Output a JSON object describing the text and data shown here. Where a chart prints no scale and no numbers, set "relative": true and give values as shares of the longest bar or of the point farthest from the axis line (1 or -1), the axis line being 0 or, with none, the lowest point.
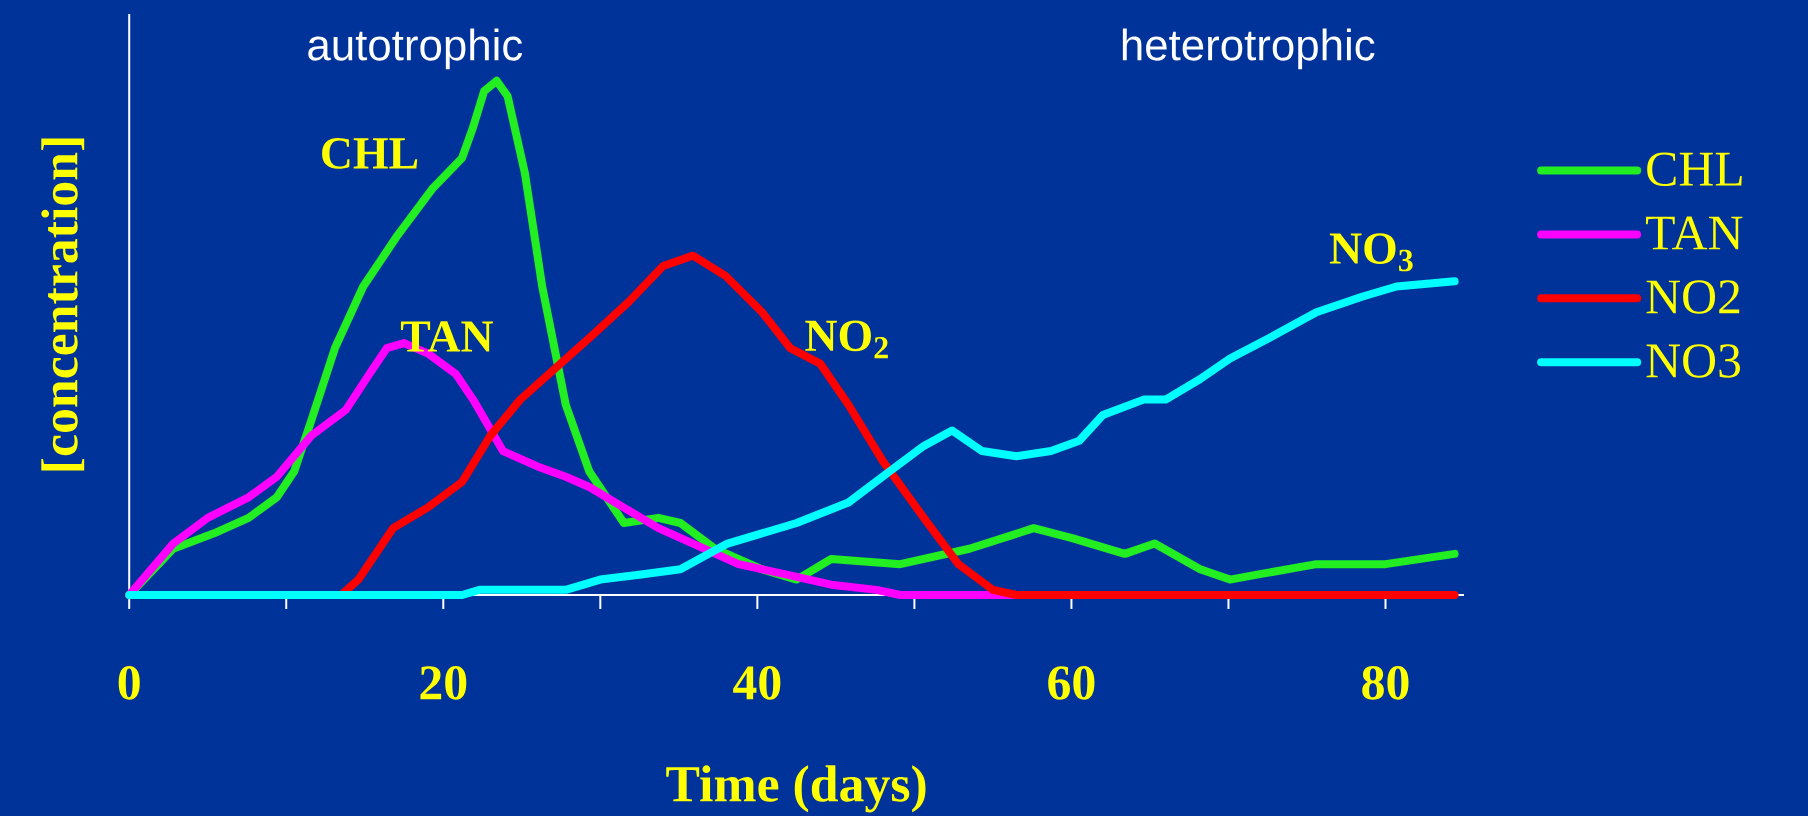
{
  "chart_data": {
    "type": "line",
    "relative": true,
    "xlabel": "Time (days)",
    "ylabel": "[concentration]",
    "xlim": [
      0,
      85
    ],
    "xticks": [
      0,
      {
        "value": 10,
        "label": null
      },
      20,
      {
        "value": 30,
        "label": null
      },
      40,
      {
        "value": 50,
        "label": null
      },
      60,
      {
        "value": 70,
        "label": null
      },
      80
    ],
    "legend": "right",
    "line_style": "solid",
    "annotations": [
      "autotrophic",
      "heterotrophic",
      "CHL",
      "TAN",
      "NO$_{2}$",
      "NO$_{3}$"
    ],
    "series": [
      {
        "name": "CHL",
        "color": "#22ee22",
        "x": [
          0,
          2.8,
          5.4,
          7.6,
          9.4,
          10.5,
          11.6,
          13.1,
          14.9,
          17.1,
          19.3,
          21.2,
          21.9,
          22.6,
          23.4,
          24.1,
          25.2,
          26.3,
          27.8,
          29.3,
          31.5,
          33.7,
          35.1,
          37.3,
          40.3,
          42.5,
          44.7,
          49.1,
          53.5,
          57.6,
          60.1,
          63.4,
          65.3,
          68.2,
          70.1,
          71.9,
          75.6,
          80,
          84.4
        ],
        "values": [
          0,
          0.09,
          0.12,
          0.15,
          0.19,
          0.24,
          0.34,
          0.48,
          0.6,
          0.7,
          0.79,
          0.85,
          0.91,
          0.98,
          1,
          0.97,
          0.82,
          0.6,
          0.37,
          0.24,
          0.14,
          0.15,
          0.14,
          0.09,
          0.05,
          0.03,
          0.07,
          0.06,
          0.09,
          0.13,
          0.11,
          0.08,
          0.1,
          0.05,
          0.03,
          0.04,
          0.06,
          0.06,
          0.08
        ]
      },
      {
        "name": "TAN",
        "color": "#ff00ff",
        "x": [
          0,
          2.8,
          5,
          7.6,
          9.4,
          11.6,
          13.8,
          15.3,
          16.4,
          17.5,
          19,
          20.8,
          21.9,
          23.8,
          26,
          27.8,
          29.3,
          31.5,
          33.7,
          35.9,
          38.8,
          41.8,
          44.7,
          47.6,
          49.1,
          57.2
        ],
        "values": [
          0,
          0.1,
          0.15,
          0.19,
          0.23,
          0.31,
          0.36,
          0.43,
          0.48,
          0.49,
          0.47,
          0.43,
          0.38,
          0.28,
          0.25,
          0.23,
          0.21,
          0.17,
          0.13,
          0.1,
          0.06,
          0.04,
          0.02,
          0.01,
          0,
          0
        ]
      },
      {
        "name": "NO2",
        "color": "#ff0000",
        "x": [
          0,
          13.5,
          14.6,
          16.8,
          19,
          21.2,
          23,
          24.9,
          27.1,
          29.3,
          31.8,
          34,
          35.9,
          38,
          40.3,
          42.1,
          44,
          45.8,
          48,
          50.6,
          52.8,
          55,
          56.5,
          84.4
        ],
        "values": [
          0,
          0,
          0.03,
          0.13,
          0.17,
          0.22,
          0.31,
          0.38,
          0.44,
          0.5,
          0.57,
          0.64,
          0.66,
          0.62,
          0.55,
          0.48,
          0.45,
          0.37,
          0.26,
          0.15,
          0.06,
          0.01,
          0,
          0
        ]
      },
      {
        "name": "NO3",
        "color": "#00ffff",
        "x": [
          0,
          21.2,
          22.3,
          27.8,
          30,
          32.6,
          35.1,
          38.1,
          42.5,
          45.8,
          48.4,
          50.6,
          52.4,
          54.3,
          56.5,
          58.7,
          60.5,
          62,
          64.6,
          66,
          68.2,
          70.1,
          72.6,
          75.6,
          78.5,
          80.7,
          84.4
        ],
        "values": [
          0,
          0,
          0.01,
          0.01,
          0.03,
          0.04,
          0.05,
          0.1,
          0.14,
          0.18,
          0.24,
          0.29,
          0.32,
          0.28,
          0.27,
          0.28,
          0.3,
          0.35,
          0.38,
          0.38,
          0.42,
          0.46,
          0.5,
          0.55,
          0.58,
          0.6,
          0.61
        ]
      }
    ]
  }
}
